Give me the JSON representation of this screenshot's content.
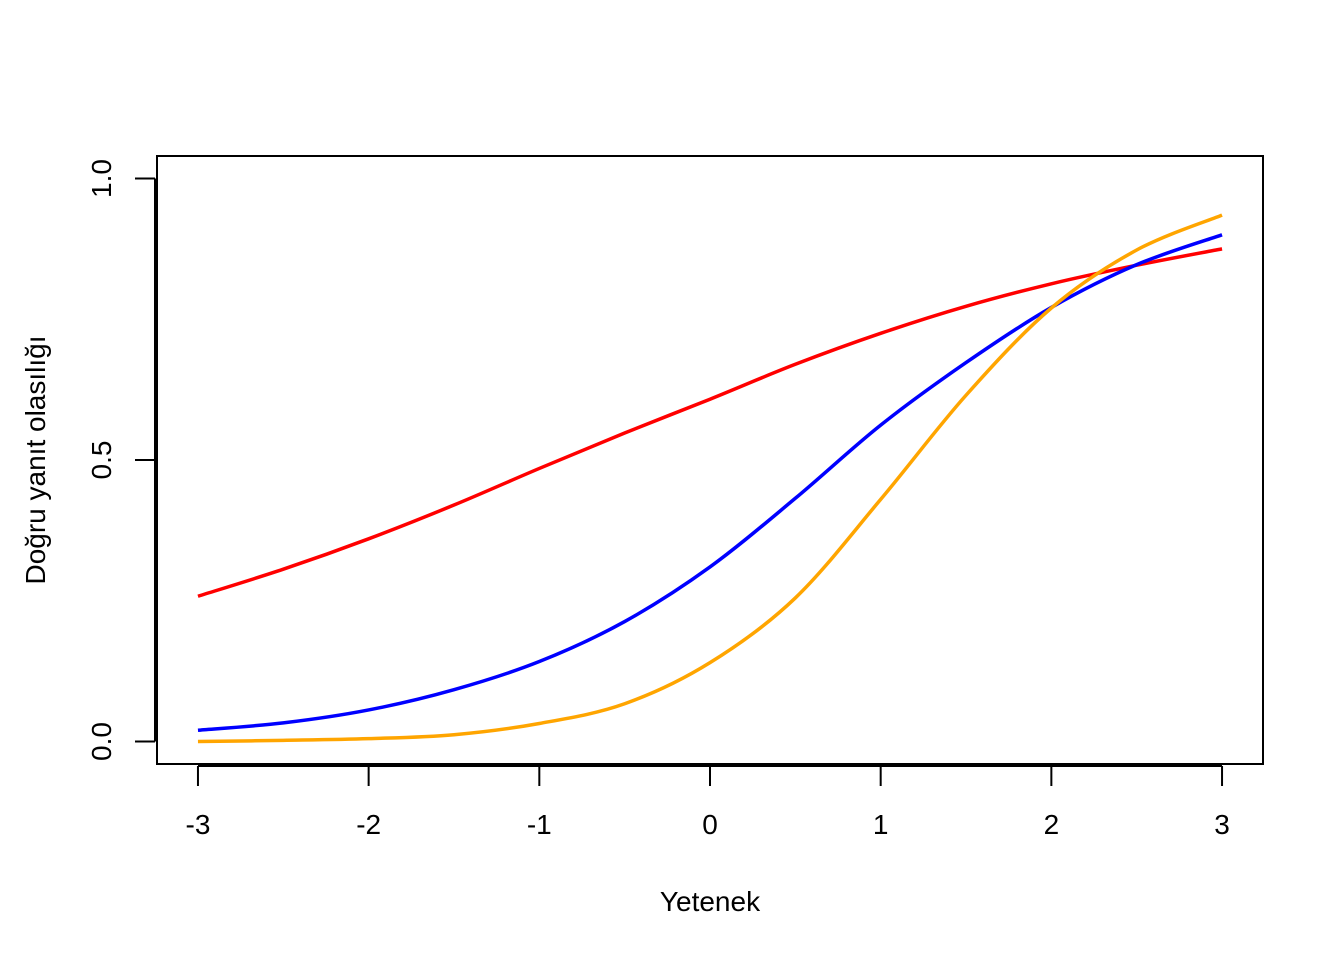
{
  "chart_data": {
    "type": "line",
    "xlabel": "Yetenek",
    "ylabel": "Doğru yanıt olasılığı",
    "xlim": [
      -3.24,
      3.24
    ],
    "ylim": [
      -0.04,
      1.04
    ],
    "x_ticks": [
      -3,
      -2,
      -1,
      0,
      1,
      2,
      3
    ],
    "x_tick_labels": [
      "-3",
      "-2",
      "-1",
      "0",
      "1",
      "2",
      "3"
    ],
    "y_ticks": [
      0.0,
      0.5,
      1.0
    ],
    "y_tick_labels": [
      "0.0",
      "0.5",
      "1.0"
    ],
    "grid": false,
    "x": [
      -3.0,
      -2.5,
      -2.0,
      -1.5,
      -1.0,
      -0.5,
      0.0,
      0.5,
      1.0,
      1.5,
      2.0,
      2.5,
      3.0
    ],
    "series": [
      {
        "color": "#ff0000",
        "values": [
          0.258,
          0.306,
          0.36,
          0.42,
          0.485,
          0.548,
          0.608,
          0.67,
          0.725,
          0.773,
          0.813,
          0.846,
          0.875
        ]
      },
      {
        "color": "#0000ff",
        "values": [
          0.02,
          0.033,
          0.056,
          0.092,
          0.142,
          0.213,
          0.31,
          0.432,
          0.562,
          0.673,
          0.771,
          0.847,
          0.9
        ]
      },
      {
        "color": "#ffa500",
        "values": [
          0.0,
          0.002,
          0.005,
          0.012,
          0.032,
          0.067,
          0.14,
          0.255,
          0.43,
          0.615,
          0.77,
          0.873,
          0.935
        ]
      }
    ]
  }
}
